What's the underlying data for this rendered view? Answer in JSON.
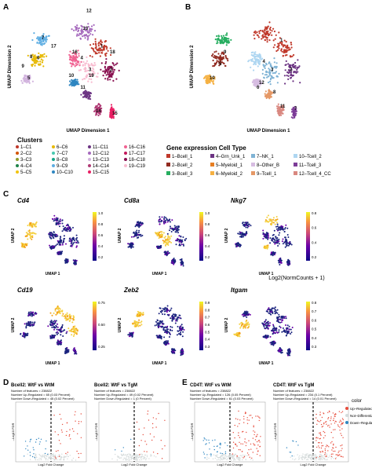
{
  "panels": {
    "A": {
      "letter": "A",
      "xlabel": "UMAP Dimension 1",
      "ylabel": "UMAP Dimension 2",
      "legend_title": "Clusters",
      "clusters": [
        {
          "label": "1–C1",
          "color": "#c0392b"
        },
        {
          "label": "2–C2",
          "color": "#d35400"
        },
        {
          "label": "3–C3",
          "color": "#8e9b2c"
        },
        {
          "label": "4–C4",
          "color": "#1e8449"
        },
        {
          "label": "5–C5",
          "color": "#f1c40f"
        },
        {
          "label": "6–C6",
          "color": "#e6b800"
        },
        {
          "label": "7–C7",
          "color": "#48c9b0"
        },
        {
          "label": "8–C8",
          "color": "#17a589"
        },
        {
          "label": "9–C9",
          "color": "#5dade2"
        },
        {
          "label": "10–C10",
          "color": "#2e86c1"
        },
        {
          "label": "11–C11",
          "color": "#6c3483"
        },
        {
          "label": "12–C12",
          "color": "#a569bd"
        },
        {
          "label": "13–C13",
          "color": "#d2b4de"
        },
        {
          "label": "14–C14",
          "color": "#b03a75"
        },
        {
          "label": "15–C15",
          "color": "#e91e63"
        },
        {
          "label": "16–C16",
          "color": "#f06292"
        },
        {
          "label": "17–C17",
          "color": "#c2185b"
        },
        {
          "label": "18–C18",
          "color": "#880e4f"
        },
        {
          "label": "19–C19",
          "color": "#f8bbd0"
        }
      ],
      "cluster_labels_on_plot": [
        "1",
        "2",
        "3",
        "4",
        "5",
        "6",
        "7",
        "8",
        "9",
        "10",
        "11",
        "12",
        "13",
        "14",
        "15",
        "16",
        "17",
        "18",
        "19"
      ]
    },
    "B": {
      "letter": "B",
      "xlabel": "UMAP Dimension 1",
      "ylabel": "UMAP Dimension 2",
      "legend_title": "Gene expression Cell Type",
      "cell_types": [
        {
          "label": "1–Bcell_1",
          "color": "#c0392b"
        },
        {
          "label": "4–Grn_Unk_1",
          "color": "#6c3483"
        },
        {
          "label": "7–NK_1",
          "color": "#7fb3d5"
        },
        {
          "label": "10–Tcell_2",
          "color": "#aed6f1"
        },
        {
          "label": "2–Bcell_2",
          "color": "#922b21"
        },
        {
          "label": "5–Myeloid_1",
          "color": "#e67e22"
        },
        {
          "label": "8–Other_B",
          "color": "#d7bde2"
        },
        {
          "label": "11–Tcell_3",
          "color": "#7d3c98"
        },
        {
          "label": "3–Bcell_3",
          "color": "#27ae60"
        },
        {
          "label": "6–Myeloid_2",
          "color": "#f5b041"
        },
        {
          "label": "9–Tcell_1",
          "color": "#e59866"
        },
        {
          "label": "12–Tcell_4_CC",
          "color": "#d98880"
        }
      ],
      "plot_labels": [
        "1",
        "2",
        "3",
        "4",
        "5",
        "6",
        "7",
        "8",
        "9",
        "10",
        "11",
        "12"
      ]
    },
    "C": {
      "letter": "C",
      "colorbar_caption": "Log2(NormCounts + 1)",
      "xlabel": "UMAP 1",
      "ylabel": "UMAP 2",
      "features": [
        {
          "gene": "Cd4",
          "ticks": [
            "1.0",
            "0.8",
            "0.6",
            "0.4",
            "0.2"
          ]
        },
        {
          "gene": "Cd8a",
          "ticks": [
            "1.0",
            "0.8",
            "0.6",
            "0.4",
            "0.2"
          ]
        },
        {
          "gene": "Nkg7",
          "ticks": [
            "0.8",
            "0.6",
            "0.4",
            "0.2"
          ]
        },
        {
          "gene": "Cd19",
          "ticks": [
            "0.75",
            "0.50",
            "0.25"
          ]
        },
        {
          "gene": "Zeb2",
          "ticks": [
            "0.9",
            "0.8",
            "0.7",
            "0.6",
            "0.5",
            "0.4",
            "0.3"
          ]
        },
        {
          "gene": "Itgam",
          "ticks": [
            "0.8",
            "0.7",
            "0.6",
            "0.5",
            "0.4",
            "0.3"
          ]
        }
      ]
    },
    "D": {
      "letter": "D",
      "plots": [
        {
          "title": "Bcell2: WtF vs WtM",
          "n_features": "Number of features = 238822",
          "n_up": "Number Up-Regulated = 65 (0.03 Percent)",
          "n_down": "Number Down-Regulated = 45 (0.02 Percent)"
        },
        {
          "title": "Bcell2: WtF vs TgM",
          "n_features": "Number of features = 238822",
          "n_up": "Number Up-Regulated = 49 (0.02 Percent)",
          "n_down": "Number Down-Regulated = 1 (0 Percent)"
        }
      ],
      "xlabel": "Log2 Fold Change",
      "ylabel": "–Log10 FDR"
    },
    "E": {
      "letter": "E",
      "plots": [
        {
          "title": "CD4T: WtF vs WtM",
          "n_features": "Number of features = 238822",
          "n_up": "Number Up-Regulated = 126 (0.05 Percent)",
          "n_down": "Number Down-Regulated = 61 (0.03 Percent)"
        },
        {
          "title": "CD4T: WtF vs TgM",
          "n_features": "Number of features = 238822",
          "n_up": "Number Up-Regulated = 234 (0.1 Percent)",
          "n_down": "Number Down-Regulated = 14 (0.01 Percent)"
        }
      ],
      "xlabel": "Log2 Fold Change",
      "ylabel": "–Log10 FDR",
      "legend_title": "color",
      "legend": [
        {
          "label": "Up–Regulated",
          "color": "#e74c3c"
        },
        {
          "label": "Not–Differential",
          "color": "#d5dbdb"
        },
        {
          "label": "Down–Regulated",
          "color": "#2e86c1"
        }
      ]
    }
  }
}
